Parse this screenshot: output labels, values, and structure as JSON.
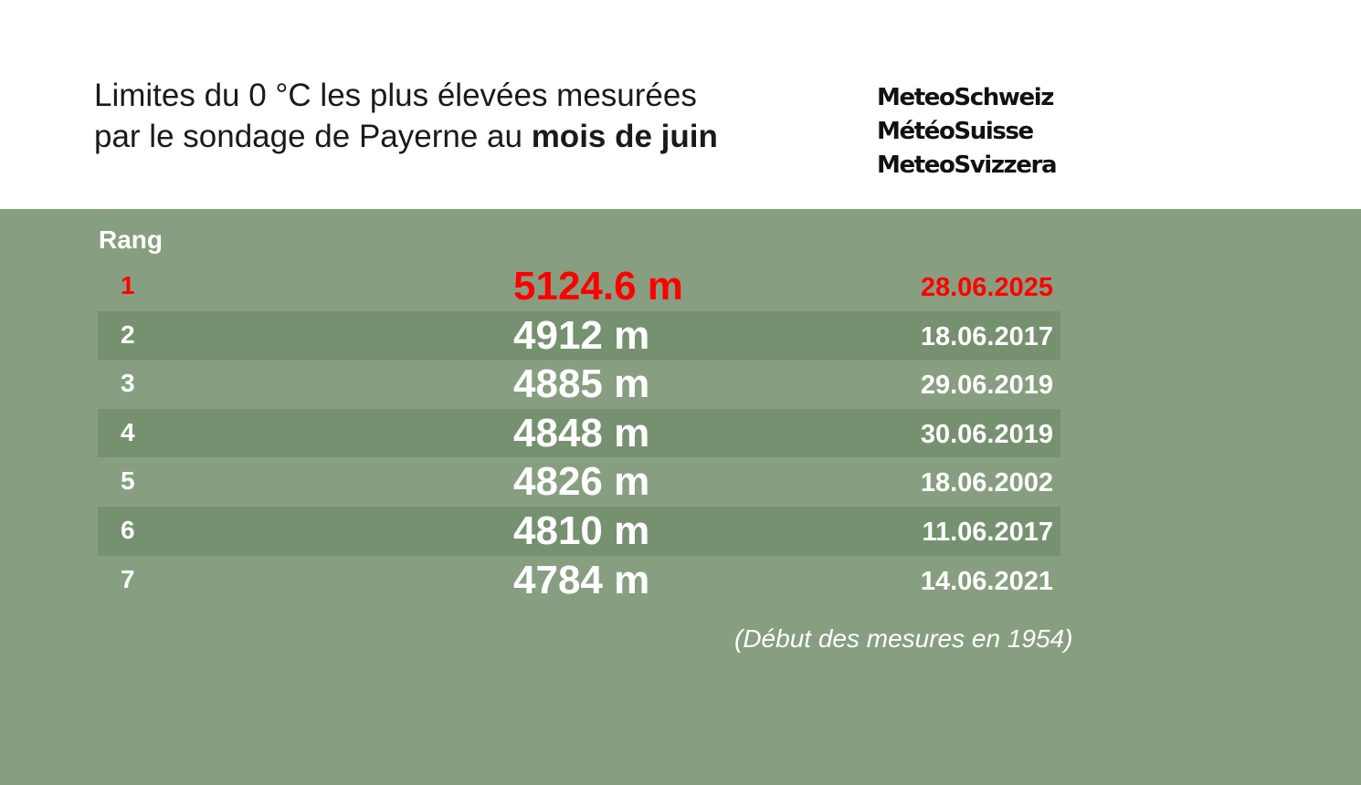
{
  "header": {
    "title_line1": "Limites du 0 °C les plus élevées mesurées",
    "title_line2_prefix": "par le sondage de Payerne au ",
    "title_line2_bold": "mois de juin"
  },
  "brand": {
    "line1": "MeteoSchweiz",
    "line2": "MétéoSuisse",
    "line3": "MeteoSvizzera"
  },
  "table": {
    "rank_header": "Rang",
    "rows": [
      {
        "rank": "1",
        "value": "5124.6 m",
        "date": "28.06.2025"
      },
      {
        "rank": "2",
        "value": "4912 m",
        "date": "18.06.2017"
      },
      {
        "rank": "3",
        "value": "4885 m",
        "date": "29.06.2019"
      },
      {
        "rank": "4",
        "value": "4848 m",
        "date": "30.06.2019"
      },
      {
        "rank": "5",
        "value": "4826 m",
        "date": "18.06.2002"
      },
      {
        "rank": "6",
        "value": "4810 m",
        "date": "11.06.2017"
      },
      {
        "rank": "7",
        "value": "4784 m",
        "date": "14.06.2021"
      }
    ]
  },
  "footnote": "(Début des mesures en 1954)",
  "colors": {
    "panel": "#879f80",
    "stripe": "#769170",
    "record": "#ff0000"
  }
}
